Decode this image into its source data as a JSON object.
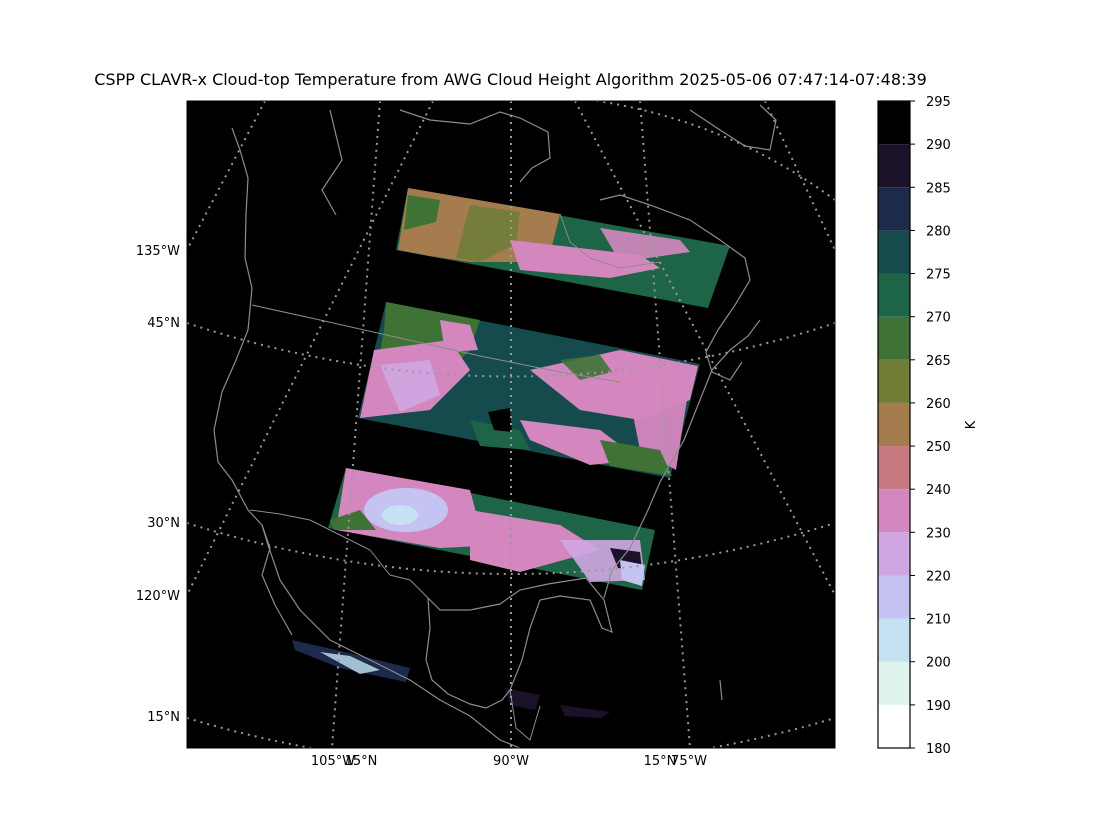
{
  "title": "CSPP CLAVR-x Cloud-top Temperature from AWG Cloud Height Algorithm 2025-05-06 07:47:14-07:48:39",
  "left_labels": [
    "135°W",
    "45°N",
    "30°N",
    "120°W",
    "15°N"
  ],
  "bottom_labels": [
    "105°W",
    "15°N",
    "90°W",
    "15°N",
    "75°W"
  ],
  "colorbar": {
    "unit": "K",
    "ticks": [
      "295",
      "290",
      "285",
      "280",
      "275",
      "270",
      "265",
      "260",
      "250",
      "240",
      "230",
      "220",
      "210",
      "200",
      "190",
      "180"
    ],
    "bins": [
      {
        "from": 180,
        "to": 190,
        "color": "#ffffff"
      },
      {
        "from": 190,
        "to": 200,
        "color": "#e0f4ee"
      },
      {
        "from": 200,
        "to": 210,
        "color": "#c6e2f2"
      },
      {
        "from": 210,
        "to": 220,
        "color": "#c4c3f2"
      },
      {
        "from": 220,
        "to": 230,
        "color": "#d0a6e2"
      },
      {
        "from": 230,
        "to": 240,
        "color": "#d487bf"
      },
      {
        "from": 240,
        "to": 250,
        "color": "#c77980"
      },
      {
        "from": 250,
        "to": 260,
        "color": "#a57c4e"
      },
      {
        "from": 260,
        "to": 265,
        "color": "#6f7d37"
      },
      {
        "from": 265,
        "to": 270,
        "color": "#3f7336"
      },
      {
        "from": 270,
        "to": 275,
        "color": "#1e6447"
      },
      {
        "from": 275,
        "to": 280,
        "color": "#164b4d"
      },
      {
        "from": 280,
        "to": 285,
        "color": "#1d2a4c"
      },
      {
        "from": 285,
        "to": 290,
        "color": "#1b1129"
      },
      {
        "from": 290,
        "to": 295,
        "color": "#000000"
      }
    ]
  },
  "colors": {
    "background": "#000000",
    "graticule": "#9a9a9a",
    "coastline": "#8c8c8c"
  }
}
